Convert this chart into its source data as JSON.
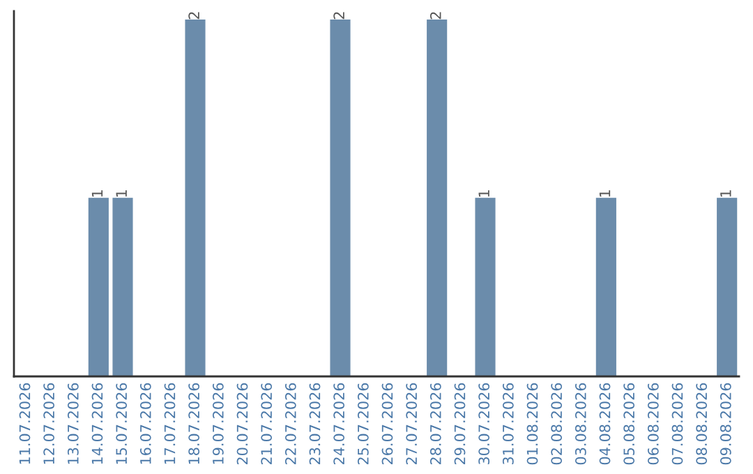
{
  "chart_data": {
    "type": "bar",
    "categories": [
      "11.07.2026",
      "12.07.2026",
      "13.07.2026",
      "14.07.2026",
      "15.07.2026",
      "16.07.2026",
      "17.07.2026",
      "18.07.2026",
      "19.07.2026",
      "20.07.2026",
      "21.07.2026",
      "22.07.2026",
      "23.07.2026",
      "24.07.2026",
      "25.07.2026",
      "26.07.2026",
      "27.07.2026",
      "28.07.2026",
      "29.07.2026",
      "30.07.2026",
      "31.07.2026",
      "01.08.2026",
      "02.08.2026",
      "03.08.2026",
      "04.08.2026",
      "05.08.2026",
      "06.08.2026",
      "07.08.2026",
      "08.08.2026",
      "09.08.2026"
    ],
    "values": [
      0,
      0,
      0,
      1,
      1,
      0,
      0,
      2,
      0,
      0,
      0,
      0,
      0,
      2,
      0,
      0,
      0,
      2,
      0,
      1,
      0,
      0,
      0,
      0,
      1,
      0,
      0,
      0,
      0,
      1
    ],
    "value_labels": [
      null,
      null,
      null,
      "1",
      "1",
      null,
      null,
      "2",
      null,
      null,
      null,
      null,
      null,
      "2",
      null,
      null,
      null,
      "2",
      null,
      "1",
      null,
      null,
      null,
      null,
      "1",
      null,
      null,
      null,
      null,
      "1"
    ],
    "color": "#6b8cab",
    "ylim": [
      0,
      2.05
    ],
    "tick_labels": "x",
    "grid": false,
    "legend": false
  }
}
